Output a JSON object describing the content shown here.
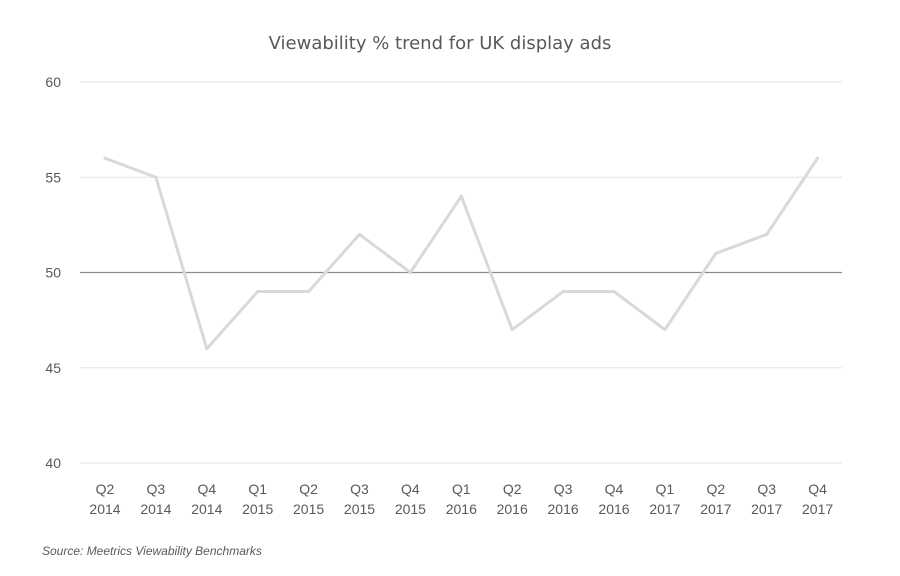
{
  "chart_data": {
    "type": "line",
    "title": "Viewability % trend for UK display ads",
    "xlabel": "",
    "ylabel": "",
    "ylim": [
      40,
      60
    ],
    "yticks": [
      "40",
      "45",
      "50",
      "55",
      "60"
    ],
    "reference_line": 50,
    "categories": [
      [
        "Q2",
        "2014"
      ],
      [
        "Q3",
        "2014"
      ],
      [
        "Q4",
        "2014"
      ],
      [
        "Q1",
        "2015"
      ],
      [
        "Q2",
        "2015"
      ],
      [
        "Q3",
        "2015"
      ],
      [
        "Q4",
        "2015"
      ],
      [
        "Q1",
        "2016"
      ],
      [
        "Q2",
        "2016"
      ],
      [
        "Q3",
        "2016"
      ],
      [
        "Q4",
        "2016"
      ],
      [
        "Q1",
        "2017"
      ],
      [
        "Q2",
        "2017"
      ],
      [
        "Q3",
        "2017"
      ],
      [
        "Q4",
        "2017"
      ]
    ],
    "series": [
      {
        "name": "Viewability %",
        "values": [
          56,
          55,
          46,
          49,
          49,
          52,
          50,
          54,
          47,
          49,
          49,
          47,
          51,
          52,
          56
        ]
      }
    ],
    "source": "Source: Meetrics Viewability Benchmarks",
    "colors": {
      "line": "#d9d9d9",
      "grid": "#e3e3e3",
      "reference": "#8c8c8c",
      "text": "#595959"
    }
  }
}
